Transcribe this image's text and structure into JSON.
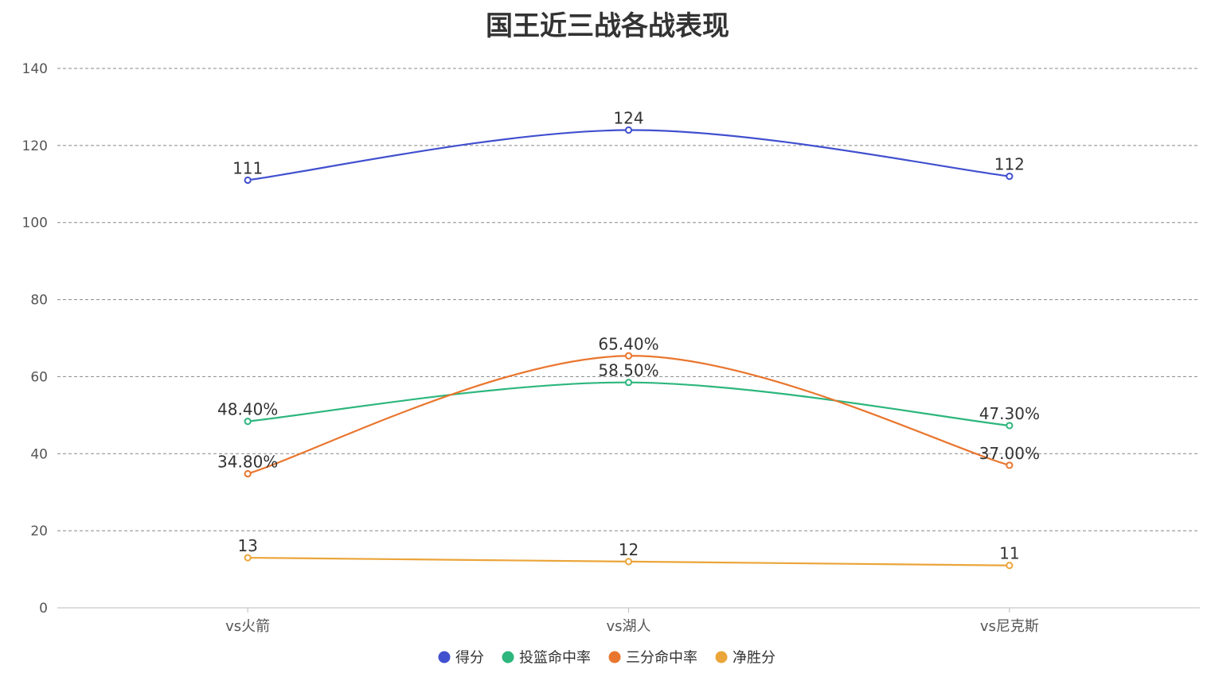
{
  "chart_data": {
    "type": "line",
    "title": "国王近三战各战表现",
    "categories": [
      "vs火箭",
      "vs湖人",
      "vs尼克斯"
    ],
    "ylim": [
      0,
      140
    ],
    "yticks": [
      0,
      20,
      40,
      60,
      80,
      100,
      120,
      140
    ],
    "grid": true,
    "smooth": true,
    "legend_position": "bottom",
    "series": [
      {
        "name": "得分",
        "color": "#4150cf",
        "values": [
          111,
          124,
          112
        ],
        "labels": [
          "111",
          "124",
          "112"
        ]
      },
      {
        "name": "投篮命中率",
        "color": "#2db67d",
        "values": [
          48.4,
          58.5,
          47.3
        ],
        "labels": [
          "48.40%",
          "58.50%",
          "47.30%"
        ]
      },
      {
        "name": "三分命中率",
        "color": "#e9762e",
        "values": [
          34.8,
          65.4,
          37.0
        ],
        "labels": [
          "34.80%",
          "65.40%",
          "37.00%"
        ]
      },
      {
        "name": "净胜分",
        "color": "#eba53a",
        "values": [
          13,
          12,
          11
        ],
        "labels": [
          "13",
          "12",
          "11"
        ]
      }
    ]
  }
}
